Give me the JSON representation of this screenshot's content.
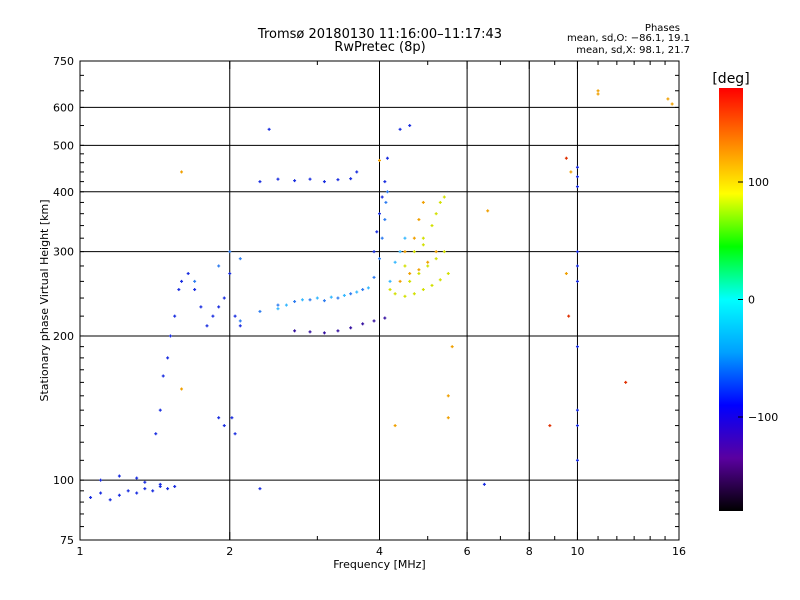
{
  "chart_data": {
    "type": "scatter",
    "title": "Tromsø 20180130 11:16:00–11:17:43",
    "subtitle": "RwPretec (8p)",
    "xlabel": "Frequency [MHz]",
    "ylabel": "Stationary phase Virtual Height [km]",
    "x_scale": "log",
    "y_scale": "log",
    "xlim": [
      1,
      16
    ],
    "ylim": [
      75,
      750
    ],
    "x_ticks": [
      1,
      2,
      4,
      6,
      8,
      10,
      16
    ],
    "x_tick_labels": [
      "1",
      "2",
      "4",
      "6",
      "8",
      "10",
      "16"
    ],
    "y_ticks": [
      75,
      100,
      200,
      300,
      400,
      500,
      600,
      750
    ],
    "y_tick_labels": [
      "75",
      "100",
      "200",
      "300",
      "400",
      "500",
      "600",
      "750"
    ],
    "grid": true,
    "phases_header": "Phases",
    "phases_o": "mean, sd,O: −86.1, 19.1",
    "phases_x": "mean, sd,X:  98.1, 21.7",
    "colorbar": {
      "label": "[deg]",
      "range": [
        -180,
        180
      ],
      "ticks": [
        100,
        0,
        -100
      ],
      "tick_labels": [
        "100",
        "0",
        "−100"
      ],
      "colors": [
        "#000000",
        "#5a00a0",
        "#0000ff",
        "#00a0ff",
        "#00ffff",
        "#00ff00",
        "#ffff00",
        "#ff8000",
        "#ff0000"
      ]
    },
    "series": [
      {
        "color": "#1a2ee0",
        "points": [
          [
            1.05,
            92
          ],
          [
            1.1,
            94
          ],
          [
            1.15,
            91
          ],
          [
            1.2,
            93
          ],
          [
            1.25,
            95
          ],
          [
            1.3,
            94
          ],
          [
            1.35,
            96
          ],
          [
            1.4,
            95
          ],
          [
            1.45,
            97
          ],
          [
            1.5,
            96
          ],
          [
            1.55,
            97
          ],
          [
            1.1,
            100
          ],
          [
            1.2,
            102
          ],
          [
            1.3,
            101
          ],
          [
            1.35,
            99
          ],
          [
            1.45,
            98
          ],
          [
            1.42,
            125
          ],
          [
            1.45,
            140
          ],
          [
            1.47,
            165
          ],
          [
            1.5,
            180
          ],
          [
            1.52,
            200
          ],
          [
            1.55,
            220
          ],
          [
            1.58,
            250
          ],
          [
            1.6,
            260
          ],
          [
            1.65,
            270
          ],
          [
            1.7,
            250
          ],
          [
            1.75,
            230
          ],
          [
            1.8,
            210
          ],
          [
            1.85,
            220
          ],
          [
            1.9,
            230
          ],
          [
            1.95,
            240
          ],
          [
            2.0,
            270
          ],
          [
            2.05,
            220
          ],
          [
            2.1,
            210
          ],
          [
            1.9,
            135
          ],
          [
            1.95,
            130
          ],
          [
            2.02,
            135
          ],
          [
            2.05,
            125
          ],
          [
            2.3,
            420
          ],
          [
            2.5,
            425
          ],
          [
            2.7,
            422
          ],
          [
            2.9,
            425
          ],
          [
            3.1,
            420
          ],
          [
            3.3,
            424
          ],
          [
            3.5,
            426
          ],
          [
            3.6,
            440
          ],
          [
            2.4,
            540
          ],
          [
            4.4,
            540
          ],
          [
            4.6,
            550
          ],
          [
            3.9,
            300
          ],
          [
            3.95,
            330
          ],
          [
            4.0,
            360
          ],
          [
            4.05,
            390
          ],
          [
            4.1,
            420
          ],
          [
            4.15,
            470
          ],
          [
            10.0,
            450
          ],
          [
            10.0,
            430
          ],
          [
            10.0,
            410
          ],
          [
            10.0,
            300
          ],
          [
            10.0,
            280
          ],
          [
            10.0,
            260
          ],
          [
            10.0,
            190
          ],
          [
            10.0,
            140
          ],
          [
            10.0,
            130
          ],
          [
            10.0,
            110
          ],
          [
            6.5,
            98
          ],
          [
            2.3,
            96
          ]
        ]
      },
      {
        "color": "#2f7df0",
        "points": [
          [
            2.1,
            215
          ],
          [
            2.3,
            225
          ],
          [
            2.5,
            232
          ],
          [
            2.7,
            236
          ],
          [
            2.9,
            238
          ],
          [
            3.1,
            237
          ],
          [
            3.3,
            240
          ],
          [
            3.5,
            245
          ],
          [
            3.7,
            250
          ],
          [
            3.9,
            265
          ],
          [
            4.0,
            290
          ],
          [
            4.05,
            320
          ],
          [
            4.1,
            350
          ],
          [
            4.12,
            380
          ],
          [
            4.15,
            400
          ],
          [
            1.9,
            280
          ],
          [
            2.0,
            300
          ],
          [
            2.1,
            290
          ],
          [
            1.7,
            260
          ]
        ]
      },
      {
        "color": "#36b8ff",
        "points": [
          [
            2.5,
            228
          ],
          [
            2.6,
            232
          ],
          [
            2.8,
            238
          ],
          [
            3.0,
            240
          ],
          [
            3.2,
            241
          ],
          [
            3.4,
            243
          ],
          [
            3.6,
            247
          ],
          [
            3.8,
            252
          ],
          [
            4.2,
            260
          ],
          [
            4.3,
            285
          ],
          [
            4.4,
            300
          ],
          [
            4.5,
            320
          ]
        ]
      },
      {
        "color": "#3510a0",
        "points": [
          [
            2.7,
            205
          ],
          [
            2.9,
            204
          ],
          [
            3.1,
            203
          ],
          [
            3.3,
            205
          ],
          [
            3.5,
            208
          ],
          [
            3.7,
            212
          ],
          [
            3.9,
            215
          ],
          [
            4.1,
            218
          ]
        ]
      },
      {
        "color": "#d2e000",
        "points": [
          [
            4.2,
            250
          ],
          [
            4.3,
            245
          ],
          [
            4.5,
            242
          ],
          [
            4.7,
            245
          ],
          [
            4.9,
            250
          ],
          [
            5.1,
            255
          ],
          [
            5.3,
            262
          ],
          [
            5.5,
            270
          ],
          [
            4.6,
            260
          ],
          [
            4.8,
            270
          ],
          [
            5.0,
            280
          ],
          [
            5.2,
            290
          ],
          [
            5.4,
            300
          ],
          [
            4.9,
            320
          ],
          [
            5.1,
            340
          ],
          [
            5.2,
            360
          ],
          [
            5.3,
            380
          ],
          [
            5.4,
            390
          ],
          [
            4.5,
            280
          ],
          [
            4.7,
            300
          ],
          [
            4.9,
            310
          ]
        ]
      },
      {
        "color": "#f0a000",
        "points": [
          [
            4.4,
            260
          ],
          [
            4.6,
            270
          ],
          [
            4.8,
            275
          ],
          [
            5.0,
            285
          ],
          [
            5.2,
            300
          ],
          [
            4.5,
            300
          ],
          [
            4.7,
            320
          ],
          [
            4.8,
            350
          ],
          [
            4.9,
            380
          ],
          [
            5.6,
            190
          ],
          [
            5.5,
            150
          ],
          [
            5.5,
            135
          ],
          [
            9.5,
            270
          ],
          [
            9.7,
            440
          ],
          [
            11.0,
            650
          ],
          [
            11.0,
            640
          ],
          [
            15.2,
            625
          ],
          [
            15.5,
            610
          ],
          [
            6.6,
            365
          ],
          [
            1.6,
            440
          ],
          [
            1.6,
            155
          ],
          [
            4.3,
            130
          ],
          [
            4.0,
            465
          ]
        ]
      },
      {
        "color": "#e03000",
        "points": [
          [
            9.5,
            470
          ],
          [
            8.8,
            130
          ],
          [
            9.6,
            220
          ],
          [
            12.5,
            160
          ]
        ]
      }
    ]
  }
}
